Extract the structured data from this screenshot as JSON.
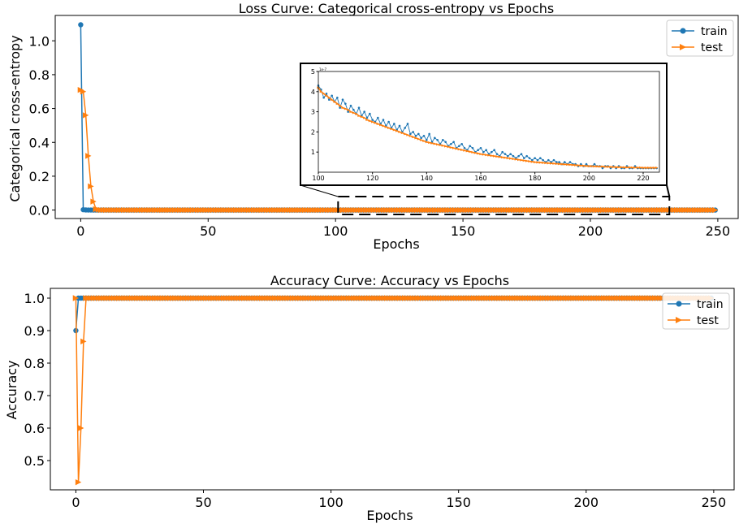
{
  "chart_data": [
    {
      "type": "line",
      "title": "Loss Curve: Categorical cross-entropy vs Epochs",
      "xlabel": "Epochs",
      "ylabel": "Categorical cross-entropy",
      "xlim": [
        -10,
        258
      ],
      "ylim": [
        -0.05,
        1.15
      ],
      "xticks": [
        0,
        50,
        100,
        150,
        200,
        250
      ],
      "yticks": [
        0.0,
        0.2,
        0.4,
        0.6,
        0.8,
        1.0
      ],
      "ytick_labels": [
        "0.0",
        "0.2",
        "0.4",
        "0.6",
        "0.8",
        "1.0"
      ],
      "legend": {
        "position": "top-right",
        "entries": [
          "train",
          "test"
        ]
      },
      "series": [
        {
          "name": "train",
          "color": "#1f77b4",
          "marker": "circle",
          "x_start": 0,
          "x_end": 249,
          "head": [
            [
              0,
              1.095
            ],
            [
              1,
              0.002
            ],
            [
              2,
              0.0005
            ],
            [
              3,
              0.0003
            ],
            [
              4,
              0.0002
            ],
            [
              5,
              0.0001
            ]
          ],
          "tail_value": 0.0
        },
        {
          "name": "test",
          "color": "#ff7f0e",
          "marker": "triangle-right",
          "x_start": 0,
          "x_end": 249,
          "head": [
            [
              0,
              0.71
            ],
            [
              1,
              0.7
            ],
            [
              2,
              0.56
            ],
            [
              3,
              0.32
            ],
            [
              4,
              0.14
            ],
            [
              5,
              0.05
            ],
            [
              6,
              0.005
            ],
            [
              7,
              0.002
            ]
          ],
          "tail_value": 0.0
        }
      ],
      "inset": {
        "xlim": [
          100,
          226
        ],
        "ylim": [
          0,
          5
        ],
        "xticks": [
          100,
          120,
          140,
          160,
          180,
          200,
          220
        ],
        "yticks": [
          1,
          2,
          3,
          4,
          5
        ],
        "ylabel_exponent": "1e-7",
        "zoom_region": {
          "x": [
            101,
            231
          ]
        },
        "train_values": [
          4.3,
          4.1,
          3.7,
          3.9,
          3.6,
          3.8,
          3.5,
          3.7,
          3.2,
          3.6,
          3.4,
          3.0,
          3.3,
          3.1,
          2.9,
          3.2,
          2.8,
          3.0,
          2.7,
          2.9,
          2.6,
          2.5,
          2.7,
          2.4,
          2.6,
          2.3,
          2.5,
          2.2,
          2.4,
          2.1,
          2.3,
          2.0,
          2.2,
          2.4,
          1.9,
          2.0,
          1.8,
          1.9,
          1.7,
          1.8,
          1.6,
          1.9,
          1.5,
          1.7,
          1.6,
          1.4,
          1.6,
          1.5,
          1.3,
          1.4,
          1.5,
          1.2,
          1.3,
          1.4,
          1.2,
          1.1,
          1.3,
          1.2,
          1.0,
          1.1,
          1.2,
          1.0,
          1.1,
          0.9,
          1.0,
          1.1,
          0.9,
          0.8,
          1.0,
          0.9,
          0.8,
          0.9,
          0.8,
          0.7,
          0.8,
          0.9,
          0.7,
          0.8,
          0.7,
          0.6,
          0.7,
          0.6,
          0.7,
          0.6,
          0.5,
          0.6,
          0.5,
          0.6,
          0.5,
          0.5,
          0.4,
          0.5,
          0.4,
          0.5,
          0.4,
          0.4,
          0.3,
          0.4,
          0.3,
          0.4,
          0.3,
          0.3,
          0.4,
          0.3,
          0.3,
          0.2,
          0.3,
          0.3,
          0.2,
          0.3,
          0.2,
          0.3,
          0.2,
          0.2,
          0.3,
          0.2,
          0.2,
          0.3,
          0.2,
          0.2,
          0.2,
          0.2,
          0.2,
          0.2,
          0.2,
          0.2
        ],
        "test_values": [
          4.2,
          4.0,
          3.9,
          3.8,
          3.7,
          3.6,
          3.5,
          3.4,
          3.3,
          3.2,
          3.15,
          3.1,
          3.0,
          2.95,
          2.9,
          2.8,
          2.75,
          2.7,
          2.6,
          2.55,
          2.5,
          2.45,
          2.4,
          2.35,
          2.3,
          2.25,
          2.2,
          2.15,
          2.1,
          2.05,
          2.0,
          1.95,
          1.9,
          1.85,
          1.8,
          1.75,
          1.7,
          1.65,
          1.6,
          1.55,
          1.5,
          1.47,
          1.44,
          1.41,
          1.38,
          1.35,
          1.32,
          1.29,
          1.26,
          1.23,
          1.2,
          1.17,
          1.14,
          1.11,
          1.08,
          1.05,
          1.02,
          0.99,
          0.96,
          0.93,
          0.9,
          0.88,
          0.86,
          0.84,
          0.82,
          0.8,
          0.78,
          0.76,
          0.74,
          0.72,
          0.7,
          0.68,
          0.66,
          0.64,
          0.62,
          0.6,
          0.58,
          0.56,
          0.54,
          0.52,
          0.5,
          0.49,
          0.48,
          0.47,
          0.46,
          0.45,
          0.44,
          0.43,
          0.42,
          0.41,
          0.4,
          0.39,
          0.38,
          0.37,
          0.36,
          0.35,
          0.34,
          0.33,
          0.32,
          0.31,
          0.3,
          0.3,
          0.29,
          0.29,
          0.28,
          0.28,
          0.27,
          0.27,
          0.26,
          0.26,
          0.25,
          0.25,
          0.25,
          0.24,
          0.24,
          0.24,
          0.23,
          0.23,
          0.23,
          0.23,
          0.22,
          0.22,
          0.22,
          0.22,
          0.22,
          0.22
        ]
      }
    },
    {
      "type": "line",
      "title": "Accuracy Curve: Accuracy vs Epochs",
      "xlabel": "Epochs",
      "ylabel": "Accuracy",
      "xlim": [
        -10,
        258
      ],
      "ylim": [
        0.41,
        1.03
      ],
      "xticks": [
        0,
        50,
        100,
        150,
        200,
        250
      ],
      "yticks": [
        0.5,
        0.6,
        0.7,
        0.8,
        0.9,
        1.0
      ],
      "ytick_labels": [
        "0.5",
        "0.6",
        "0.7",
        "0.8",
        "0.9",
        "1.0"
      ],
      "legend": {
        "position": "top-right",
        "entries": [
          "train",
          "test"
        ]
      },
      "series": [
        {
          "name": "train",
          "color": "#1f77b4",
          "marker": "circle",
          "x_start": 0,
          "x_end": 249,
          "head": [
            [
              0,
              0.9
            ],
            [
              1,
              1.0
            ],
            [
              2,
              1.0
            ],
            [
              3,
              1.0
            ]
          ],
          "tail_value": 1.0
        },
        {
          "name": "test",
          "color": "#ff7f0e",
          "marker": "triangle-right",
          "x_start": 0,
          "x_end": 249,
          "head": [
            [
              0,
              1.0
            ],
            [
              1,
              0.4333
            ],
            [
              2,
              0.6
            ],
            [
              3,
              0.8667
            ],
            [
              4,
              1.0
            ]
          ],
          "tail_value": 1.0
        }
      ]
    }
  ]
}
